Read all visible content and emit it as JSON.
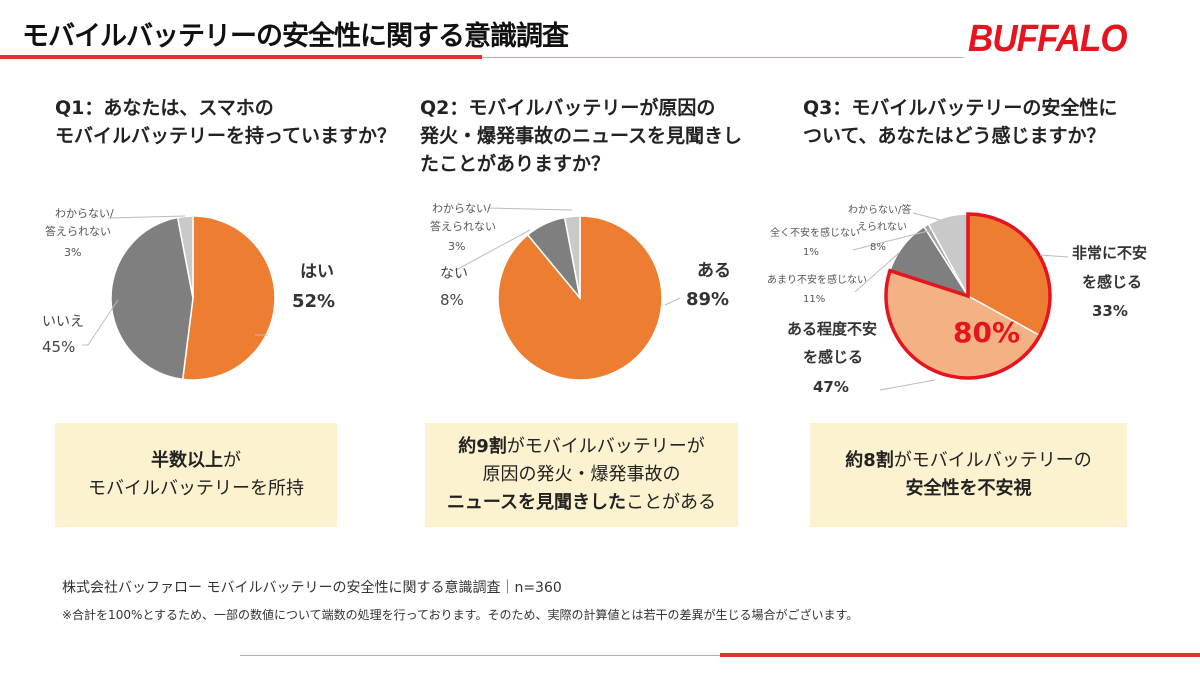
{
  "header": {
    "title": "モバイルバッテリーの安全性に関する意識調査",
    "logo": "BUFFALO"
  },
  "colors": {
    "orange": "#ed7d31",
    "light_orange": "#f4b183",
    "dark_gray": "#7f7f7f",
    "gray": "#a5a5a5",
    "light_gray": "#c9c9c9",
    "accent_red": "#e5322d",
    "box_bg": "#fdf2cf"
  },
  "chart_data": [
    {
      "type": "pie",
      "title": "Q1：あなたは、スマホのモバイルバッテリーを持っていますか？",
      "title_lines": [
        "Q1：あなたは、スマホの",
        "モバイルバッテリーを持っていますか？"
      ],
      "slices": [
        {
          "label": "はい",
          "value": 52,
          "color": "#ed7d31"
        },
        {
          "label": "いいえ",
          "value": 45,
          "color": "#7f7f7f"
        },
        {
          "label": "わからない/答えられない",
          "value": 3,
          "color": "#c9c9c9"
        }
      ]
    },
    {
      "type": "pie",
      "title": "Q2：モバイルバッテリーが原因の発火・爆発事故のニュースを見聞きしたことがありますか？",
      "title_lines": [
        "Q2：モバイルバッテリーが原因の",
        "発火・爆発事故のニュースを見聞きし",
        "たことがありますか？"
      ],
      "slices": [
        {
          "label": "ある",
          "value": 89,
          "color": "#ed7d31"
        },
        {
          "label": "ない",
          "value": 8,
          "color": "#7f7f7f"
        },
        {
          "label": "わからない/答えられない",
          "value": 3,
          "color": "#c9c9c9"
        }
      ]
    },
    {
      "type": "pie",
      "title": "Q3：モバイルバッテリーの安全性について、あなたはどう感じますか？",
      "title_lines": [
        "Q3：モバイルバッテリーの安全性に",
        "ついて、あなたはどう感じますか？"
      ],
      "slices": [
        {
          "label": "非常に不安を感じる",
          "value": 33,
          "color": "#ed7d31"
        },
        {
          "label": "ある程度不安を感じる",
          "value": 47,
          "color": "#f4b183"
        },
        {
          "label": "あまり不安を感じない",
          "value": 11,
          "color": "#7f7f7f"
        },
        {
          "label": "全く不安を感じない",
          "value": 1,
          "color": "#a5a5a5"
        },
        {
          "label": "わからない/答えられない",
          "value": 8,
          "color": "#c9c9c9"
        }
      ],
      "annotation": "80%"
    }
  ],
  "labels": {
    "q1": {
      "yes": "はい",
      "yes_pct": "52%",
      "no": "いいえ",
      "no_pct": "45%",
      "dk1": "わからない/",
      "dk2": "答えられない",
      "dk_pct": "3%"
    },
    "q2": {
      "yes": "ある",
      "yes_pct": "89%",
      "no": "ない",
      "no_pct": "8%",
      "dk1": "わからない/",
      "dk2": "答えられない",
      "dk_pct": "3%"
    },
    "q3": {
      "very1": "非常に不安",
      "very2": "を感じる",
      "very_pct": "33%",
      "some1": "ある程度不安",
      "some2": "を感じる",
      "some_pct": "47%",
      "little": "あまり不安を感じない",
      "little_pct": "11%",
      "none": "全く不安を感じない",
      "none_pct": "1%",
      "dk1": "わからない/答",
      "dk2": "えられない",
      "dk_pct": "8%"
    }
  },
  "summaries": [
    {
      "l1b": "半数以上",
      "l1": "が",
      "l2": "モバイルバッテリーを所持"
    },
    {
      "l1b": "約9割",
      "l1": "がモバイルバッテリーが",
      "l2": "原因の発火・爆発事故の",
      "l3b": "ニュースを見聞きした",
      "l3": "ことがある"
    },
    {
      "l1b": "約8割",
      "l1": "がモバイルバッテリーの",
      "l2b": "安全性を不安視"
    }
  ],
  "footer": {
    "source": "株式会社バッファロー モバイルバッテリーの安全性に関する意識調査｜n=360",
    "note": "※合計を100%とするため、一部の数値について端数の処理を行っております。そのため、実際の計算値とは若干の差異が生じる場合がございます。"
  }
}
